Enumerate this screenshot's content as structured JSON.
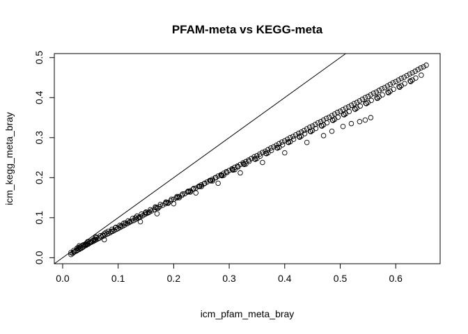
{
  "chart_data": {
    "type": "scatter",
    "title": "PFAM-meta vs KEGG-meta",
    "xlabel": "icm_pfam_meta_bray",
    "ylabel": "icm_kegg_meta_bray",
    "xlim": [
      -0.015,
      0.68
    ],
    "ylim": [
      -0.015,
      0.51
    ],
    "x_ticks": [
      0.0,
      0.1,
      0.2,
      0.3,
      0.4,
      0.5,
      0.6
    ],
    "x_tick_labels": [
      "0.0",
      "0.1",
      "0.2",
      "0.3",
      "0.4",
      "0.5",
      "0.6"
    ],
    "y_ticks": [
      0.0,
      0.1,
      0.2,
      0.3,
      0.4,
      0.5
    ],
    "y_tick_labels": [
      "0.0",
      "0.1",
      "0.2",
      "0.3",
      "0.4",
      "0.5"
    ],
    "grid": false,
    "legend": "none",
    "reference_line": {
      "intercept": 0,
      "slope": 1
    },
    "marker": "open-circle",
    "colors": {
      "points": "#000000",
      "line": "#000000",
      "background": "#ffffff"
    },
    "series": [
      {
        "x": [
          0.015,
          0.018,
          0.02,
          0.022,
          0.025,
          0.027,
          0.03,
          0.032,
          0.034,
          0.036,
          0.038,
          0.04,
          0.042,
          0.044,
          0.046,
          0.048,
          0.05,
          0.052,
          0.055,
          0.058,
          0.06,
          0.063,
          0.066,
          0.07,
          0.073,
          0.076,
          0.08,
          0.083,
          0.086,
          0.09,
          0.093,
          0.097,
          0.1,
          0.104,
          0.108,
          0.112,
          0.116,
          0.12,
          0.124,
          0.128,
          0.132,
          0.136,
          0.14,
          0.144,
          0.148,
          0.152,
          0.156,
          0.16,
          0.165,
          0.17,
          0.175,
          0.18,
          0.185,
          0.19,
          0.195,
          0.2,
          0.205,
          0.21,
          0.215,
          0.22,
          0.225,
          0.23,
          0.235,
          0.24,
          0.245,
          0.25,
          0.255,
          0.26,
          0.265,
          0.27,
          0.275,
          0.28,
          0.285,
          0.29,
          0.295,
          0.3,
          0.305,
          0.31,
          0.315,
          0.32,
          0.325,
          0.33,
          0.335,
          0.34,
          0.345,
          0.35,
          0.355,
          0.36,
          0.365,
          0.37,
          0.375,
          0.38,
          0.385,
          0.39,
          0.395,
          0.4,
          0.405,
          0.41,
          0.415,
          0.42,
          0.425,
          0.43,
          0.435,
          0.44,
          0.445,
          0.45,
          0.455,
          0.46,
          0.465,
          0.47,
          0.475,
          0.48,
          0.485,
          0.49,
          0.495,
          0.5,
          0.505,
          0.51,
          0.515,
          0.52,
          0.525,
          0.53,
          0.535,
          0.54,
          0.545,
          0.55,
          0.555,
          0.56,
          0.565,
          0.57,
          0.575,
          0.58,
          0.585,
          0.59,
          0.595,
          0.6,
          0.605,
          0.61,
          0.615,
          0.62,
          0.625,
          0.63,
          0.635,
          0.64,
          0.645,
          0.65,
          0.655,
          0.02,
          0.026,
          0.031,
          0.037,
          0.043,
          0.049,
          0.054,
          0.061,
          0.068,
          0.075,
          0.082,
          0.089,
          0.096,
          0.103,
          0.11,
          0.118,
          0.126,
          0.134,
          0.142,
          0.15,
          0.158,
          0.167,
          0.176,
          0.186,
          0.196,
          0.206,
          0.216,
          0.226,
          0.236,
          0.246,
          0.256,
          0.266,
          0.276,
          0.286,
          0.296,
          0.306,
          0.316,
          0.326,
          0.336,
          0.346,
          0.356,
          0.366,
          0.376,
          0.386,
          0.396,
          0.406,
          0.416,
          0.426,
          0.436,
          0.446,
          0.456,
          0.466,
          0.476,
          0.486,
          0.496,
          0.506,
          0.516,
          0.526,
          0.536,
          0.546,
          0.556,
          0.566,
          0.576,
          0.586,
          0.596,
          0.606,
          0.616,
          0.626,
          0.636,
          0.646,
          0.03,
          0.045,
          0.06,
          0.078,
          0.095,
          0.113,
          0.131,
          0.149,
          0.168,
          0.187,
          0.207,
          0.227,
          0.247,
          0.267,
          0.287,
          0.307,
          0.327,
          0.347,
          0.367,
          0.387,
          0.407,
          0.427,
          0.447,
          0.467,
          0.487,
          0.507,
          0.527,
          0.547,
          0.567,
          0.587,
          0.607,
          0.627,
          0.015,
          0.028,
          0.041,
          0.057,
          0.072,
          0.088,
          0.105,
          0.121,
          0.138,
          0.155,
          0.172,
          0.19,
          0.21,
          0.23,
          0.25,
          0.27,
          0.29,
          0.31,
          0.33,
          0.35,
          0.37,
          0.39,
          0.41,
          0.43,
          0.45,
          0.47,
          0.49,
          0.51,
          0.53,
          0.55,
          0.57,
          0.59,
          0.61,
          0.63,
          0.2,
          0.24,
          0.28,
          0.32,
          0.36,
          0.4,
          0.44,
          0.47,
          0.485,
          0.505,
          0.52,
          0.535,
          0.545,
          0.555,
          0.075,
          0.14,
          0.17
        ],
        "y": [
          0.008,
          0.011,
          0.014,
          0.015,
          0.017,
          0.019,
          0.021,
          0.023,
          0.024,
          0.026,
          0.028,
          0.03,
          0.031,
          0.033,
          0.034,
          0.036,
          0.038,
          0.039,
          0.041,
          0.043,
          0.045,
          0.047,
          0.049,
          0.052,
          0.054,
          0.056,
          0.059,
          0.061,
          0.063,
          0.066,
          0.068,
          0.071,
          0.073,
          0.076,
          0.079,
          0.082,
          0.085,
          0.088,
          0.091,
          0.093,
          0.096,
          0.099,
          0.102,
          0.105,
          0.108,
          0.111,
          0.114,
          0.117,
          0.12,
          0.124,
          0.128,
          0.131,
          0.135,
          0.138,
          0.142,
          0.146,
          0.149,
          0.153,
          0.156,
          0.16,
          0.164,
          0.167,
          0.171,
          0.174,
          0.178,
          0.182,
          0.185,
          0.189,
          0.193,
          0.196,
          0.2,
          0.204,
          0.207,
          0.211,
          0.215,
          0.218,
          0.222,
          0.226,
          0.229,
          0.233,
          0.237,
          0.24,
          0.244,
          0.248,
          0.252,
          0.255,
          0.259,
          0.263,
          0.266,
          0.27,
          0.274,
          0.277,
          0.281,
          0.285,
          0.289,
          0.292,
          0.296,
          0.3,
          0.303,
          0.307,
          0.311,
          0.314,
          0.318,
          0.322,
          0.326,
          0.329,
          0.333,
          0.337,
          0.34,
          0.344,
          0.348,
          0.351,
          0.355,
          0.359,
          0.363,
          0.366,
          0.37,
          0.374,
          0.377,
          0.381,
          0.385,
          0.388,
          0.392,
          0.396,
          0.4,
          0.403,
          0.407,
          0.411,
          0.414,
          0.418,
          0.422,
          0.425,
          0.429,
          0.433,
          0.437,
          0.44,
          0.444,
          0.448,
          0.451,
          0.455,
          0.459,
          0.462,
          0.466,
          0.47,
          0.474,
          0.477,
          0.481,
          0.018,
          0.024,
          0.027,
          0.032,
          0.035,
          0.04,
          0.043,
          0.05,
          0.055,
          0.06,
          0.066,
          0.071,
          0.076,
          0.081,
          0.086,
          0.092,
          0.098,
          0.104,
          0.109,
          0.114,
          0.12,
          0.127,
          0.133,
          0.139,
          0.146,
          0.153,
          0.159,
          0.166,
          0.173,
          0.179,
          0.186,
          0.193,
          0.2,
          0.206,
          0.213,
          0.22,
          0.227,
          0.234,
          0.241,
          0.247,
          0.254,
          0.261,
          0.268,
          0.275,
          0.282,
          0.289,
          0.296,
          0.303,
          0.31,
          0.316,
          0.323,
          0.33,
          0.337,
          0.344,
          0.351,
          0.358,
          0.365,
          0.372,
          0.379,
          0.386,
          0.393,
          0.4,
          0.407,
          0.414,
          0.421,
          0.428,
          0.435,
          0.442,
          0.449,
          0.456,
          0.03,
          0.04,
          0.052,
          0.063,
          0.075,
          0.087,
          0.1,
          0.112,
          0.125,
          0.138,
          0.151,
          0.165,
          0.178,
          0.192,
          0.205,
          0.219,
          0.233,
          0.246,
          0.26,
          0.274,
          0.288,
          0.301,
          0.315,
          0.329,
          0.343,
          0.357,
          0.371,
          0.385,
          0.398,
          0.412,
          0.426,
          0.44,
          0.013,
          0.025,
          0.033,
          0.046,
          0.056,
          0.066,
          0.079,
          0.09,
          0.101,
          0.113,
          0.124,
          0.136,
          0.15,
          0.164,
          0.178,
          0.192,
          0.206,
          0.22,
          0.234,
          0.248,
          0.262,
          0.276,
          0.29,
          0.304,
          0.318,
          0.332,
          0.346,
          0.36,
          0.374,
          0.388,
          0.402,
          0.416,
          0.43,
          0.444,
          0.135,
          0.162,
          0.186,
          0.212,
          0.238,
          0.262,
          0.288,
          0.305,
          0.316,
          0.328,
          0.335,
          0.34,
          0.344,
          0.35,
          0.045,
          0.09,
          0.11
        ]
      }
    ]
  }
}
